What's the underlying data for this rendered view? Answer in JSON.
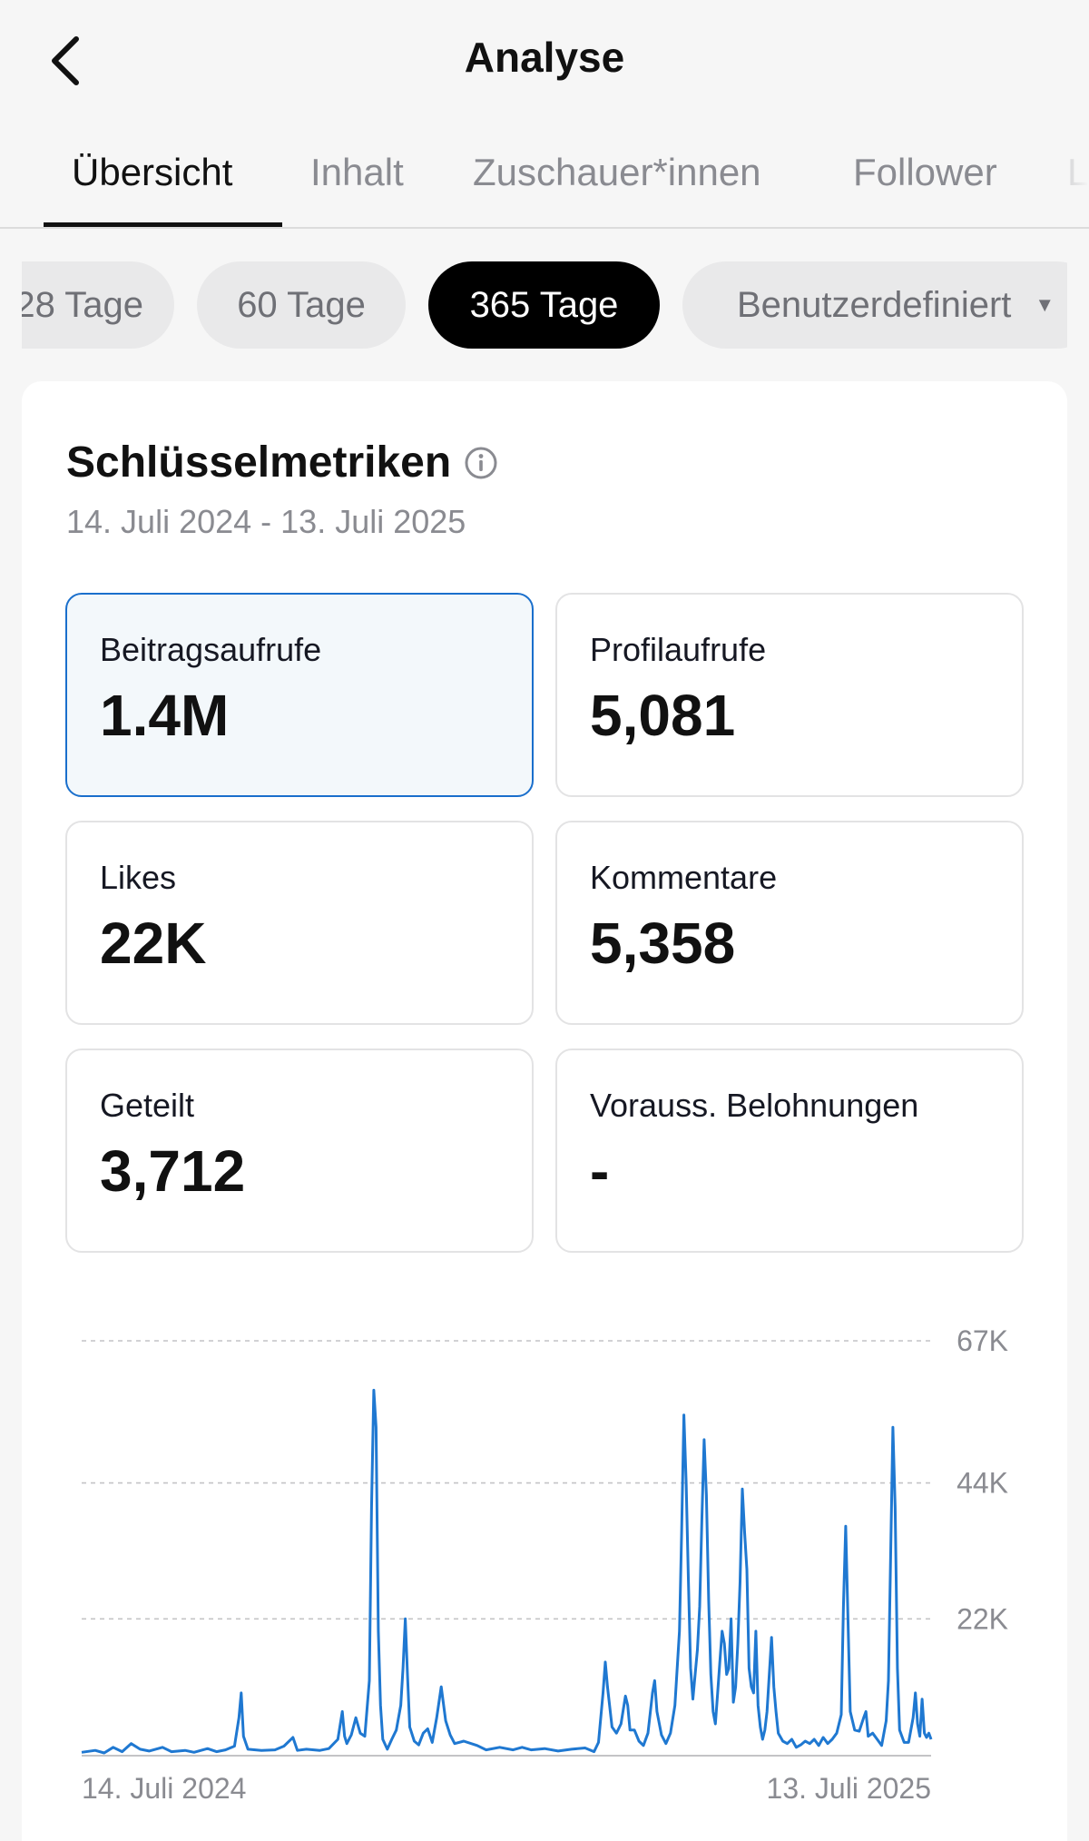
{
  "header": {
    "title": "Analyse"
  },
  "tabs": [
    {
      "label": "Übersicht",
      "active": true
    },
    {
      "label": "Inhalt",
      "active": false
    },
    {
      "label": "Zuschauer*innen",
      "active": false
    },
    {
      "label": "Follower",
      "active": false
    },
    {
      "label": "L",
      "active": false
    }
  ],
  "range_chips": [
    {
      "label": "28 Tage",
      "active": false
    },
    {
      "label": "60 Tage",
      "active": false
    },
    {
      "label": "365 Tage",
      "active": true
    },
    {
      "label": "Benutzerdefiniert",
      "active": false
    }
  ],
  "key_metrics": {
    "title": "Schlüsselmetriken",
    "date_range": "14. Juli 2024 - 13. Juli 2025",
    "items": [
      {
        "label": "Beitragsaufrufe",
        "value": "1.4M",
        "selected": true
      },
      {
        "label": "Profilaufrufe",
        "value": "5,081",
        "selected": false
      },
      {
        "label": "Likes",
        "value": "22K",
        "selected": false
      },
      {
        "label": "Kommentare",
        "value": "5,358",
        "selected": false
      },
      {
        "label": "Geteilt",
        "value": "3,712",
        "selected": false
      },
      {
        "label": "Vorauss. Belohnungen",
        "value": "-",
        "selected": false
      }
    ]
  },
  "colors": {
    "accent": "#1f78d1",
    "selected_border": "#1a6fcc",
    "selected_bg": "#f3f8fb"
  },
  "chart_data": {
    "type": "line",
    "series": [
      {
        "values": [
          [
            0,
            400
          ],
          [
            6,
            700
          ],
          [
            10,
            300
          ],
          [
            14,
            1200
          ],
          [
            18,
            500
          ],
          [
            22,
            1800
          ],
          [
            26,
            900
          ],
          [
            30,
            600
          ],
          [
            36,
            1200
          ],
          [
            40,
            500
          ],
          [
            46,
            700
          ],
          [
            50,
            400
          ],
          [
            56,
            1000
          ],
          [
            60,
            500
          ],
          [
            64,
            800
          ],
          [
            68,
            1400
          ],
          [
            70,
            6000
          ],
          [
            71,
            10000
          ],
          [
            72,
            3000
          ],
          [
            74,
            900
          ],
          [
            80,
            700
          ],
          [
            86,
            800
          ],
          [
            90,
            1400
          ],
          [
            94,
            2800
          ],
          [
            96,
            700
          ],
          [
            100,
            900
          ],
          [
            106,
            700
          ],
          [
            110,
            1000
          ],
          [
            114,
            2500
          ],
          [
            116,
            7000
          ],
          [
            117,
            3000
          ],
          [
            118,
            1800
          ],
          [
            120,
            3200
          ],
          [
            122,
            6000
          ],
          [
            124,
            3500
          ],
          [
            126,
            3000
          ],
          [
            128,
            12000
          ],
          [
            129,
            40000
          ],
          [
            130,
            59000
          ],
          [
            131,
            53000
          ],
          [
            132,
            20000
          ],
          [
            133,
            8000
          ],
          [
            134,
            2500
          ],
          [
            136,
            900
          ],
          [
            138,
            2500
          ],
          [
            140,
            4000
          ],
          [
            142,
            8000
          ],
          [
            143,
            14000
          ],
          [
            144,
            22000
          ],
          [
            145,
            13000
          ],
          [
            146,
            4500
          ],
          [
            148,
            2200
          ],
          [
            150,
            1600
          ],
          [
            152,
            3500
          ],
          [
            154,
            4200
          ],
          [
            156,
            2000
          ],
          [
            158,
            6000
          ],
          [
            160,
            11000
          ],
          [
            162,
            5500
          ],
          [
            164,
            3200
          ],
          [
            166,
            1800
          ],
          [
            170,
            2200
          ],
          [
            176,
            1500
          ],
          [
            180,
            800
          ],
          [
            186,
            1200
          ],
          [
            192,
            800
          ],
          [
            196,
            1200
          ],
          [
            200,
            800
          ],
          [
            206,
            1000
          ],
          [
            212,
            600
          ],
          [
            218,
            900
          ],
          [
            224,
            1100
          ],
          [
            228,
            500
          ],
          [
            230,
            2000
          ],
          [
            232,
            10000
          ],
          [
            233,
            15000
          ],
          [
            234,
            11000
          ],
          [
            236,
            4500
          ],
          [
            238,
            3500
          ],
          [
            240,
            5000
          ],
          [
            242,
            9500
          ],
          [
            243,
            8000
          ],
          [
            244,
            4000
          ],
          [
            246,
            4000
          ],
          [
            248,
            2200
          ],
          [
            250,
            1500
          ],
          [
            252,
            3500
          ],
          [
            254,
            10000
          ],
          [
            255,
            12000
          ],
          [
            256,
            7000
          ],
          [
            258,
            3200
          ],
          [
            260,
            1800
          ],
          [
            262,
            3500
          ],
          [
            264,
            8000
          ],
          [
            266,
            20000
          ],
          [
            267,
            36000
          ],
          [
            268,
            55000
          ],
          [
            269,
            44000
          ],
          [
            270,
            28000
          ],
          [
            271,
            14000
          ],
          [
            272,
            9000
          ],
          [
            273,
            13000
          ],
          [
            274,
            17000
          ],
          [
            275,
            24000
          ],
          [
            276,
            38000
          ],
          [
            277,
            51000
          ],
          [
            278,
            42000
          ],
          [
            279,
            25000
          ],
          [
            280,
            13000
          ],
          [
            281,
            7000
          ],
          [
            282,
            5000
          ],
          [
            283,
            10000
          ],
          [
            284,
            15000
          ],
          [
            285,
            20000
          ],
          [
            286,
            18000
          ],
          [
            287,
            13000
          ],
          [
            288,
            14000
          ],
          [
            289,
            22000
          ],
          [
            290,
            8500
          ],
          [
            291,
            11000
          ],
          [
            292,
            18000
          ],
          [
            293,
            28000
          ],
          [
            294,
            43000
          ],
          [
            295,
            36000
          ],
          [
            296,
            30000
          ],
          [
            297,
            14000
          ],
          [
            298,
            11000
          ],
          [
            299,
            10000
          ],
          [
            300,
            20000
          ],
          [
            301,
            8000
          ],
          [
            302,
            4500
          ],
          [
            303,
            2500
          ],
          [
            304,
            4000
          ],
          [
            305,
            7000
          ],
          [
            306,
            13000
          ],
          [
            307,
            19000
          ],
          [
            308,
            11000
          ],
          [
            309,
            7000
          ],
          [
            310,
            3500
          ],
          [
            312,
            2200
          ],
          [
            314,
            1800
          ],
          [
            316,
            2500
          ],
          [
            318,
            1200
          ],
          [
            320,
            1600
          ],
          [
            322,
            2200
          ],
          [
            324,
            1800
          ],
          [
            326,
            2500
          ],
          [
            328,
            1500
          ],
          [
            330,
            2800
          ],
          [
            332,
            1800
          ],
          [
            334,
            2500
          ],
          [
            336,
            3500
          ],
          [
            338,
            6500
          ],
          [
            339,
            24000
          ],
          [
            340,
            37000
          ],
          [
            341,
            22000
          ],
          [
            342,
            7000
          ],
          [
            344,
            4000
          ],
          [
            346,
            3800
          ],
          [
            348,
            6000
          ],
          [
            349,
            7000
          ],
          [
            350,
            3000
          ],
          [
            352,
            3500
          ],
          [
            354,
            2500
          ],
          [
            356,
            1500
          ],
          [
            358,
            5500
          ],
          [
            359,
            12000
          ],
          [
            360,
            32000
          ],
          [
            361,
            53000
          ],
          [
            362,
            40000
          ],
          [
            363,
            14000
          ],
          [
            364,
            4000
          ],
          [
            366,
            2000
          ],
          [
            368,
            2000
          ],
          [
            370,
            6000
          ],
          [
            371,
            10000
          ],
          [
            372,
            5000
          ],
          [
            373,
            3000
          ],
          [
            374,
            9000
          ],
          [
            375,
            3500
          ],
          [
            376,
            2800
          ],
          [
            377,
            3500
          ],
          [
            378,
            2500
          ]
        ]
      }
    ],
    "y_ticks": [
      "67K",
      "44K",
      "22K"
    ],
    "y_tick_values": [
      67000,
      44000,
      22000
    ],
    "x_labels": [
      "14. Juli 2024",
      "13. Juli 2025"
    ],
    "xlim": [
      0,
      378
    ],
    "ylim": [
      0,
      67000
    ],
    "grid": true
  }
}
